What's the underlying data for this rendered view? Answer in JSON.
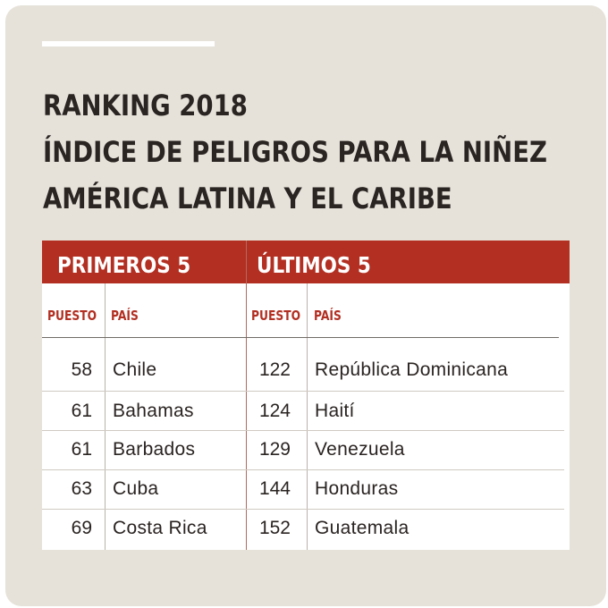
{
  "title": {
    "line1": "RANKING 2018",
    "line2": "ÍNDICE DE PELIGROS PARA LA NIÑEZ",
    "line3": "AMÉRICA LATINA Y EL CARIBE"
  },
  "colors": {
    "background": "#e6e2d9",
    "header_red": "#b22f22",
    "text": "#2a2422"
  },
  "table": {
    "left": {
      "heading": "PRIMEROS 5",
      "col_rank": "PUESTO",
      "col_country": "PAÍS",
      "rows": [
        {
          "rank": "58",
          "country": "Chile"
        },
        {
          "rank": "61",
          "country": "Bahamas"
        },
        {
          "rank": "61",
          "country": "Barbados"
        },
        {
          "rank": "63",
          "country": "Cuba"
        },
        {
          "rank": "69",
          "country": "Costa Rica"
        }
      ]
    },
    "right": {
      "heading": "ÚLTIMOS 5",
      "col_rank": "PUESTO",
      "col_country": "PAÍS",
      "rows": [
        {
          "rank": "122",
          "country": "República Dominicana"
        },
        {
          "rank": "124",
          "country": "Haití"
        },
        {
          "rank": "129",
          "country": "Venezuela"
        },
        {
          "rank": "144",
          "country": "Honduras"
        },
        {
          "rank": "152",
          "country": "Guatemala"
        }
      ]
    }
  }
}
